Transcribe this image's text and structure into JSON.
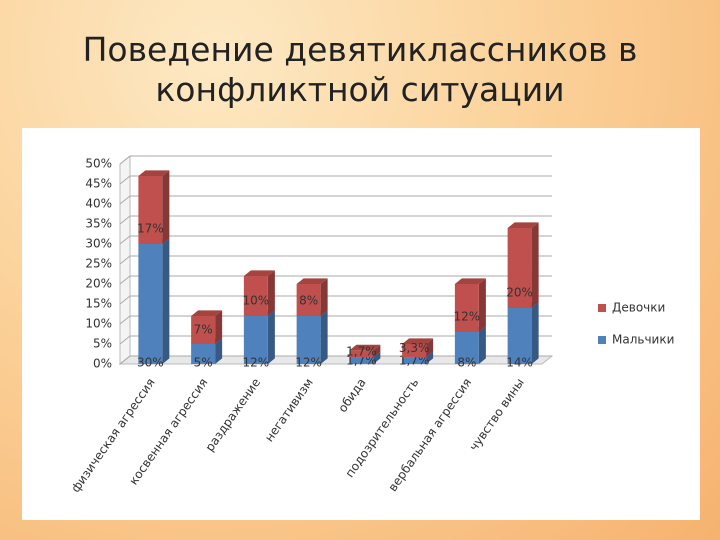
{
  "chart_data": {
    "type": "stacked-bar-3d",
    "title": "Поведение девятиклассников в конфликтной ситуации",
    "categories": [
      "физическая агрессия",
      "косвенная агрессия",
      "раздражение",
      "негативизм",
      "обида",
      "подозрительность",
      "вербальная агрессия",
      "чувство вины"
    ],
    "series": [
      {
        "name": "Мальчики",
        "color": "#4f81bd",
        "values": [
          30,
          5,
          12,
          12,
          1.7,
          1.7,
          8,
          14
        ],
        "value_labels": [
          "30%",
          "5%",
          "12%",
          "12%",
          "1,7%",
          "1,7%",
          "8%",
          "14%"
        ]
      },
      {
        "name": "Девочки",
        "color": "#c0504d",
        "values": [
          17,
          7,
          10,
          8,
          1.7,
          3.3,
          12,
          20
        ],
        "value_labels": [
          "17%",
          "7%",
          "10%",
          "8%",
          "1,7%",
          "3,3%",
          "12%",
          "20%"
        ]
      }
    ],
    "ylim": [
      0,
      50
    ],
    "yticks": [
      {
        "value": 0,
        "label": "0%"
      },
      {
        "value": 5,
        "label": "5%"
      },
      {
        "value": 10,
        "label": "10%"
      },
      {
        "value": 15,
        "label": "15%"
      },
      {
        "value": 20,
        "label": "20%"
      },
      {
        "value": 25,
        "label": "25%"
      },
      {
        "value": 30,
        "label": "30%"
      },
      {
        "value": 35,
        "label": "35%"
      },
      {
        "value": 40,
        "label": "40%"
      },
      {
        "value": 45,
        "label": "45%"
      },
      {
        "value": 50,
        "label": "50%"
      }
    ],
    "grid": true,
    "legend": "right"
  }
}
